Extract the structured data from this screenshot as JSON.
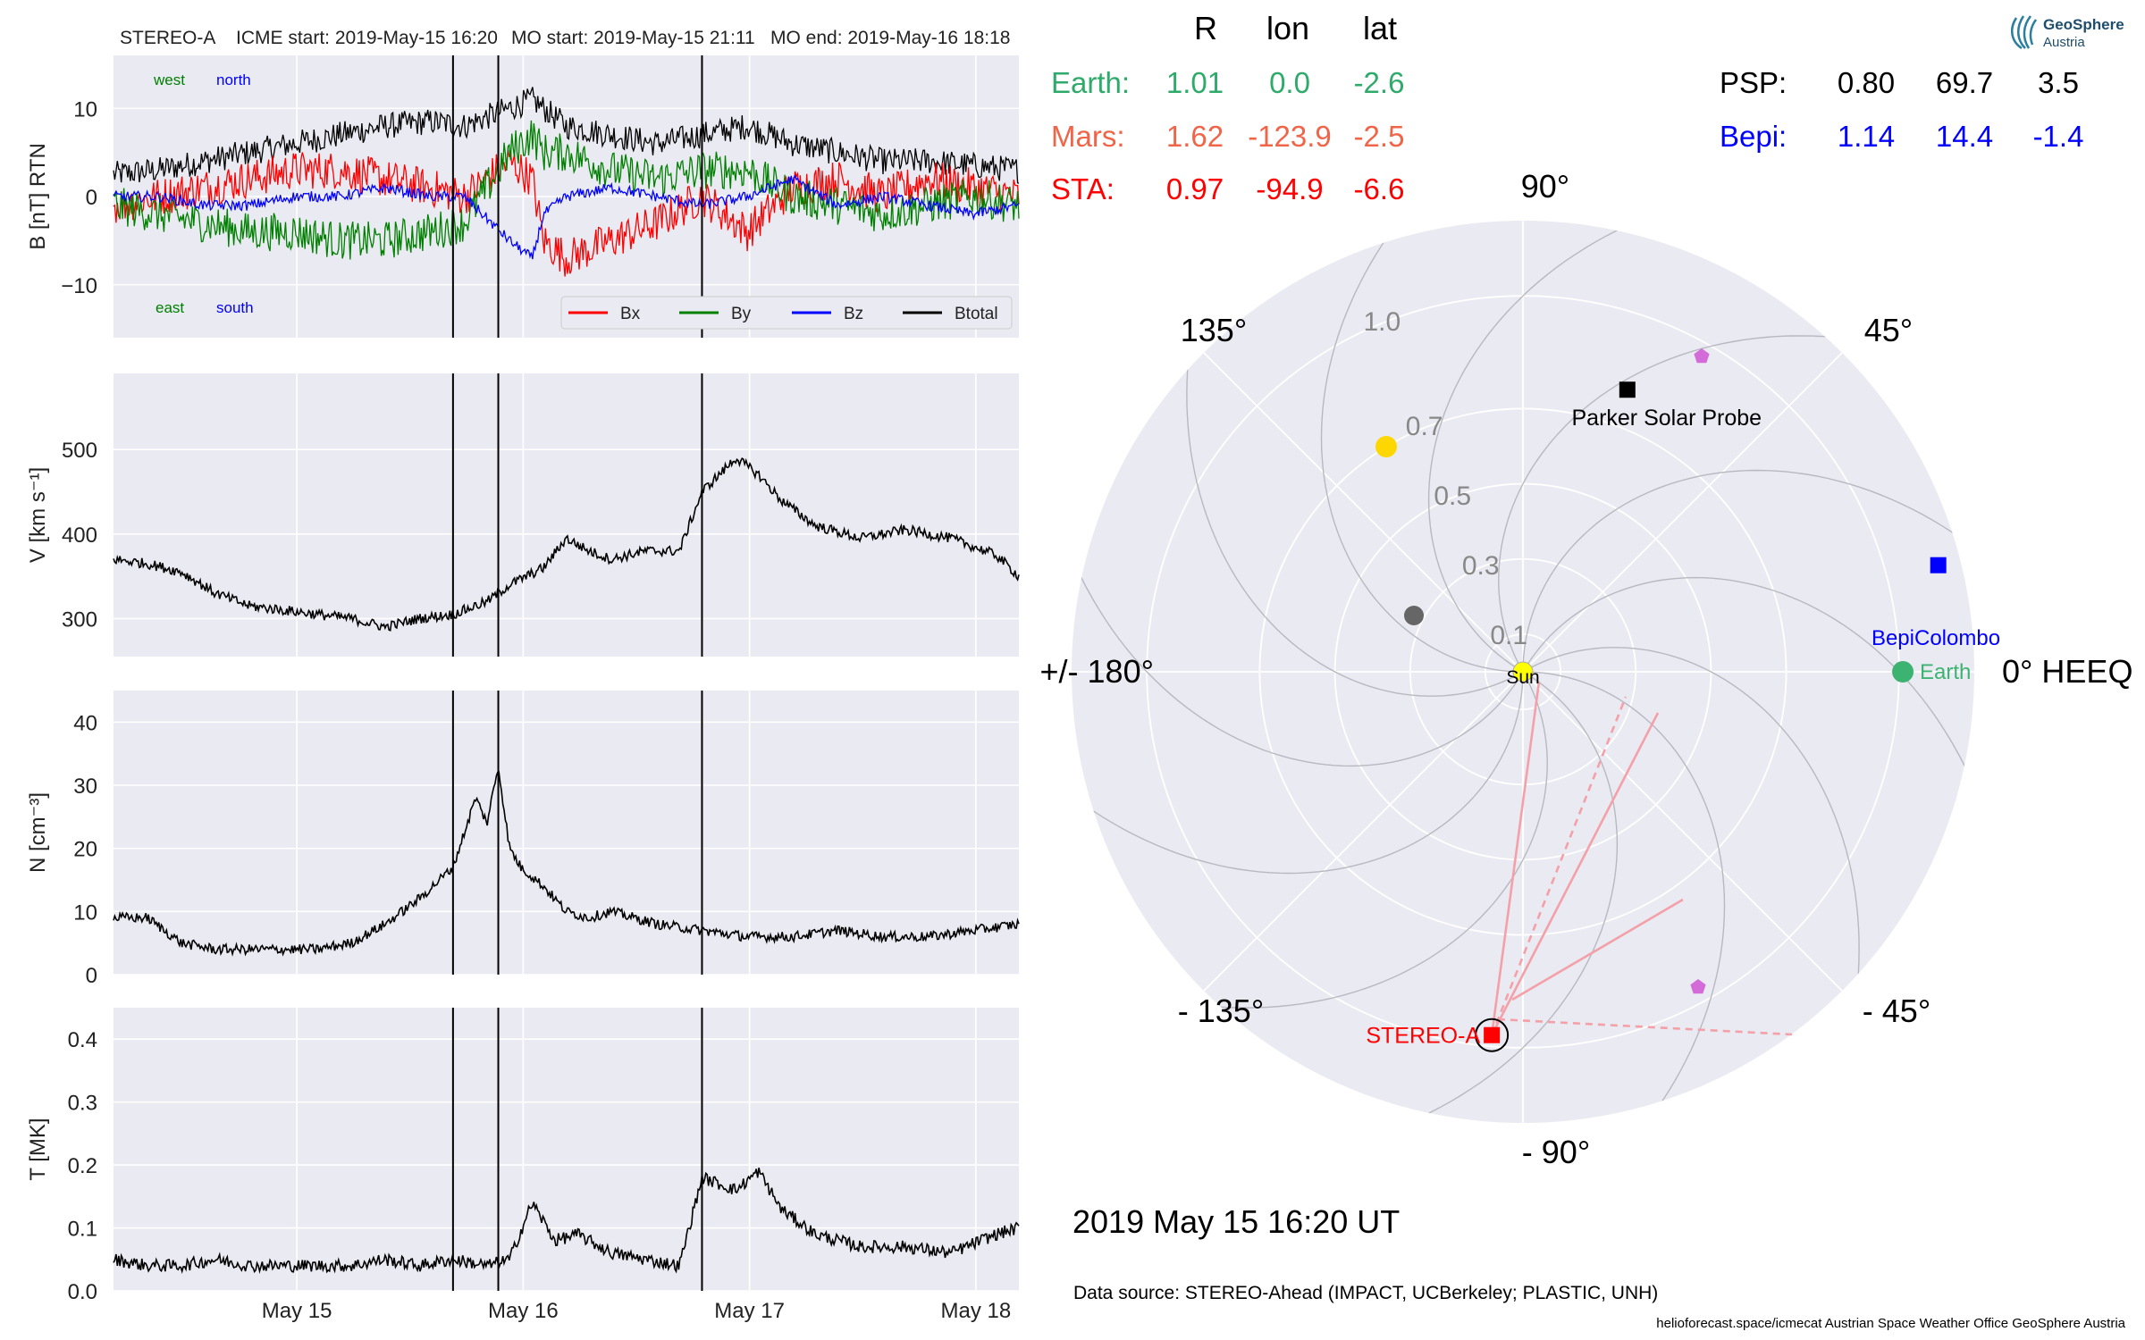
{
  "header": {
    "spacecraft": "STEREO-A",
    "icme_start": "ICME start: 2019-May-15 16:20",
    "mo_start": "MO start: 2019-May-15 21:11",
    "mo_end": "MO end: 2019-May-16 18:18"
  },
  "position_table": {
    "col_headers": [
      "R",
      "lon",
      "lat"
    ],
    "left_rows": [
      {
        "name": "Earth:",
        "R": "1.01",
        "lon": "0.0",
        "lat": "-2.6",
        "color": "#2eaa6a"
      },
      {
        "name": "Mars:",
        "R": "1.62",
        "lon": "-123.9",
        "lat": "-2.5",
        "color": "#f06448"
      },
      {
        "name": "STA:",
        "R": "0.97",
        "lon": "-94.9",
        "lat": "-6.6",
        "color": "#ff0000"
      }
    ],
    "right_rows": [
      {
        "name": "PSP:",
        "R": "0.80",
        "lon": "69.7",
        "lat": "3.5",
        "color": "#000000"
      },
      {
        "name": "Bepi:",
        "R": "1.14",
        "lon": "14.4",
        "lat": "-1.4",
        "color": "#0000ff"
      }
    ]
  },
  "polar": {
    "angle_labels": [
      "90°",
      "45°",
      "0° HEEQ",
      "- 45°",
      "- 90°",
      "- 135°",
      "+/- 180°",
      "135°"
    ],
    "radial_labels": [
      "0.1",
      "0.3",
      "0.5",
      "0.7",
      "1.0"
    ],
    "object_labels": {
      "parker": "Parker Solar Probe",
      "bepi": "BepiColombo",
      "earth": "Earth",
      "sun": "Sun",
      "stereo": "STEREO-A"
    },
    "timestamp": "2019 May 15  16:20 UT"
  },
  "footer": {
    "data_source": "Data source: STEREO-Ahead (IMPACT, UCBerkeley; PLASTIC, UNH)",
    "credits": "helioforecast.space/icmecat   Austrian Space Weather Office   GeoSphere Austria"
  },
  "logo": {
    "name": "GeoSphere",
    "sub": "Austria"
  },
  "chart_data": [
    {
      "type": "line",
      "ylabel": "B [nT] RTN",
      "ylim": [
        -16,
        16
      ],
      "yticks": [
        10,
        0,
        -10
      ],
      "ytick_labels": [
        "10",
        "0",
        "−10"
      ],
      "corner_labels": {
        "west": "west",
        "north": "north",
        "east": "east",
        "south": "south"
      },
      "legend": [
        "Bx",
        "By",
        "Bz",
        "Btotal"
      ],
      "colors": {
        "Bx": "#ff0000",
        "By": "#008000",
        "Bz": "#0000ff",
        "Btotal": "#000000"
      },
      "series": [
        {
          "name": "Btotal",
          "x": [
            0,
            0.2,
            0.4,
            0.6,
            0.8,
            1.0,
            1.2,
            1.4,
            1.55,
            1.75,
            1.85,
            1.9,
            2.0,
            2.2,
            2.4,
            2.6,
            2.8,
            3.0,
            3.2,
            3.4,
            3.6,
            3.8,
            4.0
          ],
          "values": [
            2.5,
            3,
            4,
            5,
            6,
            7,
            8,
            8.5,
            8,
            10,
            11,
            10,
            8,
            7,
            6,
            7,
            8,
            6,
            5,
            4,
            4,
            3.5,
            3
          ]
        },
        {
          "name": "Bx",
          "x": [
            0,
            0.2,
            0.4,
            0.6,
            0.8,
            1.0,
            1.2,
            1.4,
            1.55,
            1.75,
            1.85,
            1.9,
            2.0,
            2.2,
            2.4,
            2.6,
            2.8,
            3.0,
            3.2,
            3.4,
            3.6,
            3.8,
            4.0
          ],
          "values": [
            -1,
            0,
            1,
            2,
            3,
            3,
            2,
            1,
            0,
            4,
            2,
            -5,
            -7,
            -5,
            -3,
            0,
            -4,
            1,
            2,
            0,
            2,
            1,
            0
          ]
        },
        {
          "name": "By",
          "x": [
            0,
            0.2,
            0.4,
            0.6,
            0.8,
            1.0,
            1.2,
            1.4,
            1.55,
            1.75,
            1.85,
            1.9,
            2.0,
            2.2,
            2.4,
            2.6,
            2.8,
            3.0,
            3.2,
            3.4,
            3.6,
            3.8,
            4.0
          ],
          "values": [
            -1,
            -2,
            -3,
            -4,
            -4,
            -5,
            -5,
            -4,
            -3,
            5,
            7,
            5,
            5,
            3,
            2,
            3,
            3,
            0,
            -1,
            -2,
            -1,
            0,
            -1
          ]
        },
        {
          "name": "Bz",
          "x": [
            0,
            0.2,
            0.4,
            0.6,
            0.8,
            1.0,
            1.2,
            1.4,
            1.55,
            1.75,
            1.85,
            1.9,
            2.0,
            2.2,
            2.4,
            2.6,
            2.8,
            3.0,
            3.2,
            3.4,
            3.6,
            3.8,
            4.0
          ],
          "values": [
            0,
            0,
            -1,
            -1,
            0,
            0,
            1,
            0,
            0,
            -5,
            -7,
            -2,
            0,
            1,
            0,
            -1,
            0,
            2,
            -1,
            0,
            -1,
            -2,
            -1
          ]
        }
      ]
    },
    {
      "type": "line",
      "ylabel": "V [km s⁻¹]",
      "ylim": [
        255,
        590
      ],
      "yticks": [
        500,
        400,
        300
      ],
      "ytick_labels": [
        "500",
        "400",
        "300"
      ],
      "series": [
        {
          "name": "",
          "x": [
            0,
            0.15,
            0.3,
            0.45,
            0.6,
            0.75,
            0.9,
            1.05,
            1.2,
            1.35,
            1.5,
            1.65,
            1.75,
            1.9,
            2.0,
            2.1,
            2.2,
            2.35,
            2.5,
            2.6,
            2.75,
            2.85,
            2.95,
            3.1,
            3.3,
            3.5,
            3.7,
            3.9,
            4.0
          ],
          "values": [
            370,
            365,
            355,
            330,
            315,
            310,
            305,
            300,
            290,
            300,
            305,
            320,
            340,
            360,
            395,
            380,
            370,
            380,
            380,
            450,
            490,
            470,
            440,
            410,
            395,
            405,
            395,
            375,
            350
          ]
        }
      ]
    },
    {
      "type": "line",
      "ylabel": "N [cm⁻³]",
      "ylim": [
        0,
        45
      ],
      "yticks": [
        40,
        30,
        20,
        10,
        0
      ],
      "ytick_labels": [
        "40",
        "30",
        "20",
        "10",
        "0"
      ],
      "series": [
        {
          "name": "",
          "x": [
            0,
            0.15,
            0.3,
            0.45,
            0.6,
            0.75,
            0.9,
            1.05,
            1.2,
            1.35,
            1.5,
            1.6,
            1.65,
            1.7,
            1.75,
            1.8,
            1.9,
            2.0,
            2.1,
            2.2,
            2.4,
            2.6,
            2.8,
            3.0,
            3.2,
            3.4,
            3.6,
            3.8,
            4.0
          ],
          "values": [
            9,
            9,
            5,
            4,
            4,
            4,
            4,
            5,
            8,
            12,
            17,
            28,
            24,
            33,
            20,
            17,
            14,
            10,
            9,
            10,
            8,
            7,
            6,
            6,
            7,
            6,
            6,
            7,
            8
          ]
        }
      ]
    },
    {
      "type": "line",
      "ylabel": "T [MK]",
      "ylim": [
        0,
        0.45
      ],
      "yticks": [
        0.4,
        0.3,
        0.2,
        0.1,
        0.0
      ],
      "ytick_labels": [
        "0.4",
        "0.3",
        "0.2",
        "0.1",
        "0.0"
      ],
      "xtick_labels": [
        "May 15",
        "May 16",
        "May 17",
        "May 18"
      ],
      "series": [
        {
          "name": "",
          "x": [
            0,
            0.15,
            0.3,
            0.45,
            0.6,
            0.75,
            0.9,
            1.05,
            1.2,
            1.35,
            1.5,
            1.65,
            1.75,
            1.85,
            1.95,
            2.05,
            2.2,
            2.35,
            2.5,
            2.6,
            2.75,
            2.85,
            2.95,
            3.1,
            3.3,
            3.5,
            3.7,
            3.9,
            4.0
          ],
          "values": [
            0.05,
            0.04,
            0.04,
            0.05,
            0.04,
            0.04,
            0.04,
            0.04,
            0.05,
            0.04,
            0.05,
            0.04,
            0.05,
            0.14,
            0.08,
            0.09,
            0.06,
            0.05,
            0.04,
            0.18,
            0.16,
            0.19,
            0.13,
            0.09,
            0.07,
            0.07,
            0.06,
            0.09,
            0.1
          ]
        }
      ]
    }
  ]
}
